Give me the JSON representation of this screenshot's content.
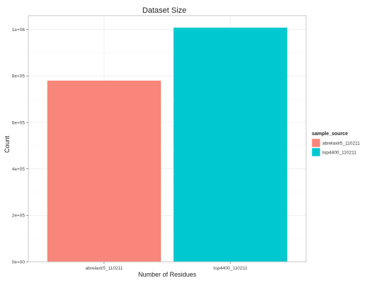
{
  "chart_data": {
    "type": "bar",
    "title": "Dataset Size",
    "xlabel": "Number of Residues",
    "ylabel": "Count",
    "categories": [
      "abrelaxlr5_110211",
      "top4400_110211"
    ],
    "values": [
      780000,
      1008000
    ],
    "colors": [
      "#F8867A",
      "#00C8D0"
    ],
    "ylim": [
      0,
      1060000
    ],
    "yticks": [
      0,
      200000,
      400000,
      600000,
      800000,
      1000000
    ],
    "ytick_labels": [
      "0e+00",
      "2e+05",
      "4e+05",
      "6e+05",
      "8e+05",
      "1e+06"
    ],
    "grid": true,
    "legend": {
      "title": "sample_source",
      "position": "right",
      "entries": [
        "abrelaxlr5_110211",
        "top4400_110211"
      ]
    }
  }
}
